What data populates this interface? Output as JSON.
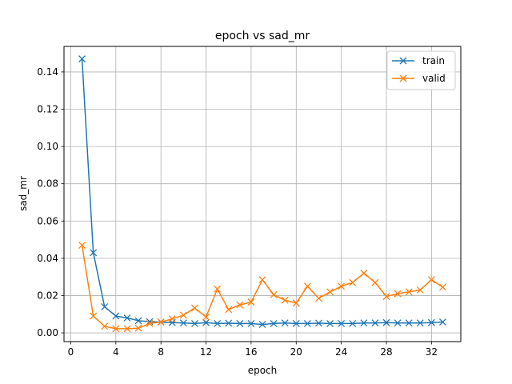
{
  "chart_data": {
    "type": "line",
    "title": "epoch vs sad_mr",
    "xlabel": "epoch",
    "ylabel": "sad_mr",
    "xlim": [
      -0.6,
      34.6
    ],
    "ylim": [
      -0.0047,
      0.1537
    ],
    "xticks": [
      0,
      4,
      8,
      12,
      16,
      20,
      24,
      28,
      32
    ],
    "yticks": [
      0.0,
      0.02,
      0.04,
      0.06,
      0.08,
      0.1,
      0.12,
      0.14
    ],
    "ytick_labels": [
      "0.00",
      "0.02",
      "0.04",
      "0.06",
      "0.08",
      "0.10",
      "0.12",
      "0.14"
    ],
    "grid": true,
    "legend_position": "top-right",
    "marker": "x",
    "x": [
      1,
      2,
      3,
      4,
      5,
      6,
      7,
      8,
      9,
      10,
      11,
      12,
      13,
      14,
      15,
      16,
      17,
      18,
      19,
      20,
      21,
      22,
      23,
      24,
      25,
      26,
      27,
      28,
      29,
      30,
      31,
      32,
      33
    ],
    "series": [
      {
        "name": "train",
        "color": "#1f77b4",
        "values": [
          0.147,
          0.043,
          0.014,
          0.009,
          0.008,
          0.0065,
          0.006,
          0.0058,
          0.0055,
          0.0053,
          0.005,
          0.0055,
          0.005,
          0.0052,
          0.005,
          0.005,
          0.0045,
          0.005,
          0.0053,
          0.005,
          0.005,
          0.0052,
          0.005,
          0.005,
          0.005,
          0.0053,
          0.0053,
          0.0055,
          0.0053,
          0.0053,
          0.0053,
          0.0055,
          0.0058
        ]
      },
      {
        "name": "valid",
        "color": "#ff7f0e",
        "values": [
          0.047,
          0.009,
          0.0035,
          0.0022,
          0.0022,
          0.0025,
          0.005,
          0.0058,
          0.0075,
          0.0095,
          0.0133,
          0.0085,
          0.0235,
          0.0125,
          0.015,
          0.0165,
          0.0285,
          0.0205,
          0.0175,
          0.016,
          0.025,
          0.0185,
          0.022,
          0.025,
          0.027,
          0.032,
          0.027,
          0.0195,
          0.021,
          0.022,
          0.023,
          0.0285,
          0.0245
        ]
      }
    ]
  }
}
